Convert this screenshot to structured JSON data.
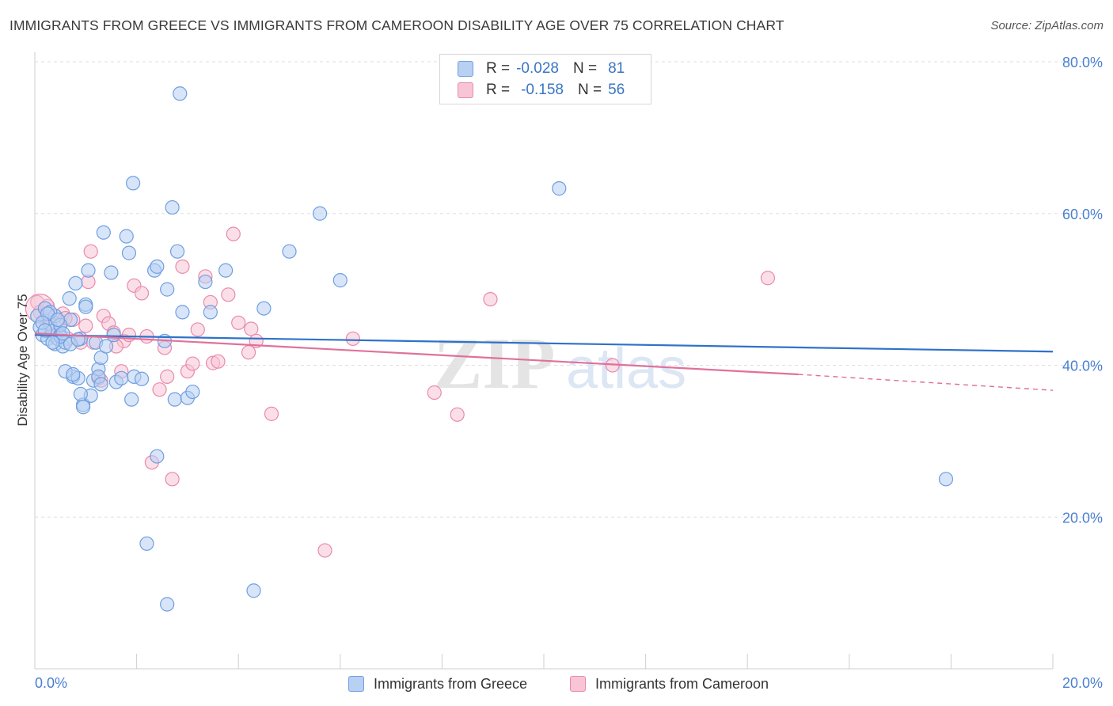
{
  "header": {
    "title": "IMMIGRANTS FROM GREECE VS IMMIGRANTS FROM CAMEROON DISABILITY AGE OVER 75 CORRELATION CHART",
    "source": "Source: ZipAtlas.com"
  },
  "legend": {
    "rows": [
      {
        "r_label": "R =",
        "r_value": "-0.028",
        "n_label": "N =",
        "n_value": "81"
      },
      {
        "r_label": "R =",
        "r_value": "-0.158",
        "n_label": "N =",
        "n_value": "56"
      }
    ]
  },
  "watermark": {
    "zip": "ZIP",
    "atlas": "atlas"
  },
  "colors": {
    "greece_fill": "#b8d0f2",
    "greece_stroke": "#6e9fe0",
    "greece_line": "#2f72c9",
    "cameroon_fill": "#f7c5d6",
    "cameroon_stroke": "#e98aab",
    "cameroon_line": "#e0719b",
    "tick_label": "#4a7fd0",
    "grid": "#dedede"
  },
  "chart_data": {
    "type": "scatter",
    "title": "IMMIGRANTS FROM GREECE VS IMMIGRANTS FROM CAMEROON DISABILITY AGE OVER 75 CORRELATION CHART",
    "xlabel": "",
    "ylabel": "Disability Age Over 75",
    "xlim": [
      0,
      20
    ],
    "ylim": [
      0,
      80
    ],
    "x_tick_labels": [
      "0.0%",
      "20.0%"
    ],
    "y_ticks": [
      20,
      40,
      60,
      80
    ],
    "y_tick_labels": [
      "20.0%",
      "40.0%",
      "60.0%",
      "80.0%"
    ],
    "grid": true,
    "legend_position": "top-center",
    "series": [
      {
        "name": "Immigrants from Greece",
        "color": "#6e9fe0",
        "trend": {
          "x": [
            0,
            20
          ],
          "y": [
            44.0,
            41.8
          ]
        },
        "points": [
          [
            0.05,
            46.5
          ],
          [
            0.1,
            45.0
          ],
          [
            0.15,
            44.0
          ],
          [
            0.2,
            47.5
          ],
          [
            0.25,
            43.5
          ],
          [
            0.3,
            45.5
          ],
          [
            0.35,
            44.5
          ],
          [
            0.4,
            42.8
          ],
          [
            0.45,
            43.5
          ],
          [
            0.5,
            44.0
          ],
          [
            0.55,
            42.5
          ],
          [
            0.6,
            43.0
          ],
          [
            0.7,
            46.0
          ],
          [
            0.75,
            38.5
          ],
          [
            0.8,
            50.8
          ],
          [
            0.85,
            38.3
          ],
          [
            0.9,
            43.5
          ],
          [
            0.95,
            34.8
          ],
          [
            1.0,
            48.0
          ],
          [
            1.05,
            52.5
          ],
          [
            1.1,
            36.0
          ],
          [
            1.15,
            38.0
          ],
          [
            1.2,
            43.0
          ],
          [
            1.25,
            39.5
          ],
          [
            1.3,
            41.0
          ],
          [
            1.35,
            57.5
          ],
          [
            1.4,
            42.5
          ],
          [
            1.5,
            52.2
          ],
          [
            1.55,
            44.0
          ],
          [
            1.6,
            37.8
          ],
          [
            1.7,
            38.3
          ],
          [
            1.8,
            57.0
          ],
          [
            1.85,
            54.8
          ],
          [
            1.9,
            35.5
          ],
          [
            1.95,
            38.5
          ],
          [
            2.1,
            38.2
          ],
          [
            2.35,
            52.5
          ],
          [
            2.4,
            53.0
          ],
          [
            2.55,
            43.2
          ],
          [
            2.6,
            50.0
          ],
          [
            2.75,
            35.5
          ],
          [
            2.8,
            55.0
          ],
          [
            2.9,
            47.0
          ],
          [
            3.0,
            35.7
          ],
          [
            3.1,
            36.5
          ],
          [
            3.35,
            51.0
          ],
          [
            3.45,
            47.0
          ],
          [
            3.75,
            52.5
          ],
          [
            4.5,
            47.5
          ],
          [
            5.0,
            55.0
          ],
          [
            5.6,
            60.0
          ],
          [
            6.0,
            51.2
          ],
          [
            2.85,
            75.8
          ],
          [
            1.93,
            64.0
          ],
          [
            2.7,
            60.8
          ],
          [
            0.68,
            48.8
          ],
          [
            0.4,
            46.5
          ],
          [
            0.3,
            47.0
          ],
          [
            0.9,
            36.2
          ],
          [
            1.25,
            38.5
          ],
          [
            0.6,
            39.2
          ],
          [
            0.5,
            43.8
          ],
          [
            0.25,
            46.8
          ],
          [
            0.95,
            34.5
          ],
          [
            1.3,
            37.5
          ],
          [
            2.2,
            16.5
          ],
          [
            2.6,
            8.5
          ],
          [
            4.3,
            10.3
          ],
          [
            2.4,
            28.0
          ],
          [
            10.3,
            63.3
          ],
          [
            17.9,
            25.0
          ],
          [
            0.15,
            45.6
          ],
          [
            0.2,
            44.6
          ],
          [
            0.35,
            43.0
          ],
          [
            0.5,
            45.3
          ],
          [
            0.7,
            42.8
          ],
          [
            0.75,
            38.8
          ],
          [
            1.0,
            47.7
          ],
          [
            0.45,
            46.0
          ],
          [
            0.55,
            44.2
          ],
          [
            0.85,
            43.4
          ]
        ]
      },
      {
        "name": "Immigrants from Cameroon",
        "color": "#e98aab",
        "trend": {
          "x": [
            0,
            15
          ],
          "y": [
            44.2,
            38.8
          ]
        },
        "trend_dashed": {
          "x": [
            15,
            20
          ],
          "y": [
            38.8,
            36.7
          ]
        },
        "points": [
          [
            0.05,
            48.3
          ],
          [
            0.1,
            47.0
          ],
          [
            0.2,
            46.0
          ],
          [
            0.25,
            47.8
          ],
          [
            0.3,
            45.3
          ],
          [
            0.35,
            44.0
          ],
          [
            0.4,
            46.5
          ],
          [
            0.5,
            45.5
          ],
          [
            0.55,
            46.8
          ],
          [
            0.65,
            43.5
          ],
          [
            0.75,
            46.0
          ],
          [
            0.9,
            43.0
          ],
          [
            1.0,
            45.2
          ],
          [
            1.1,
            55.0
          ],
          [
            1.15,
            43.0
          ],
          [
            1.25,
            38.3
          ],
          [
            1.3,
            38.0
          ],
          [
            1.35,
            46.5
          ],
          [
            1.45,
            45.5
          ],
          [
            1.55,
            44.3
          ],
          [
            1.7,
            39.2
          ],
          [
            1.75,
            43.2
          ],
          [
            1.85,
            44.0
          ],
          [
            1.95,
            50.5
          ],
          [
            2.1,
            49.5
          ],
          [
            2.2,
            43.8
          ],
          [
            2.3,
            27.2
          ],
          [
            2.45,
            36.8
          ],
          [
            2.55,
            42.3
          ],
          [
            2.6,
            38.5
          ],
          [
            2.7,
            25.0
          ],
          [
            2.9,
            53.0
          ],
          [
            3.0,
            39.2
          ],
          [
            3.1,
            40.2
          ],
          [
            3.2,
            44.7
          ],
          [
            3.35,
            51.7
          ],
          [
            3.45,
            48.3
          ],
          [
            3.5,
            40.3
          ],
          [
            3.6,
            40.5
          ],
          [
            3.8,
            49.3
          ],
          [
            3.9,
            57.3
          ],
          [
            4.0,
            45.6
          ],
          [
            4.2,
            41.7
          ],
          [
            4.25,
            44.8
          ],
          [
            4.35,
            43.2
          ],
          [
            4.65,
            33.6
          ],
          [
            5.7,
            15.6
          ],
          [
            6.25,
            43.5
          ],
          [
            7.85,
            36.4
          ],
          [
            8.3,
            33.5
          ],
          [
            8.95,
            48.7
          ],
          [
            11.35,
            40.0
          ],
          [
            14.4,
            51.5
          ],
          [
            0.6,
            46.2
          ],
          [
            1.05,
            51.0
          ],
          [
            1.6,
            42.5
          ]
        ]
      }
    ]
  },
  "bottom_legend": {
    "greece_label": "Immigrants from Greece",
    "cameroon_label": "Immigrants from Cameroon"
  }
}
